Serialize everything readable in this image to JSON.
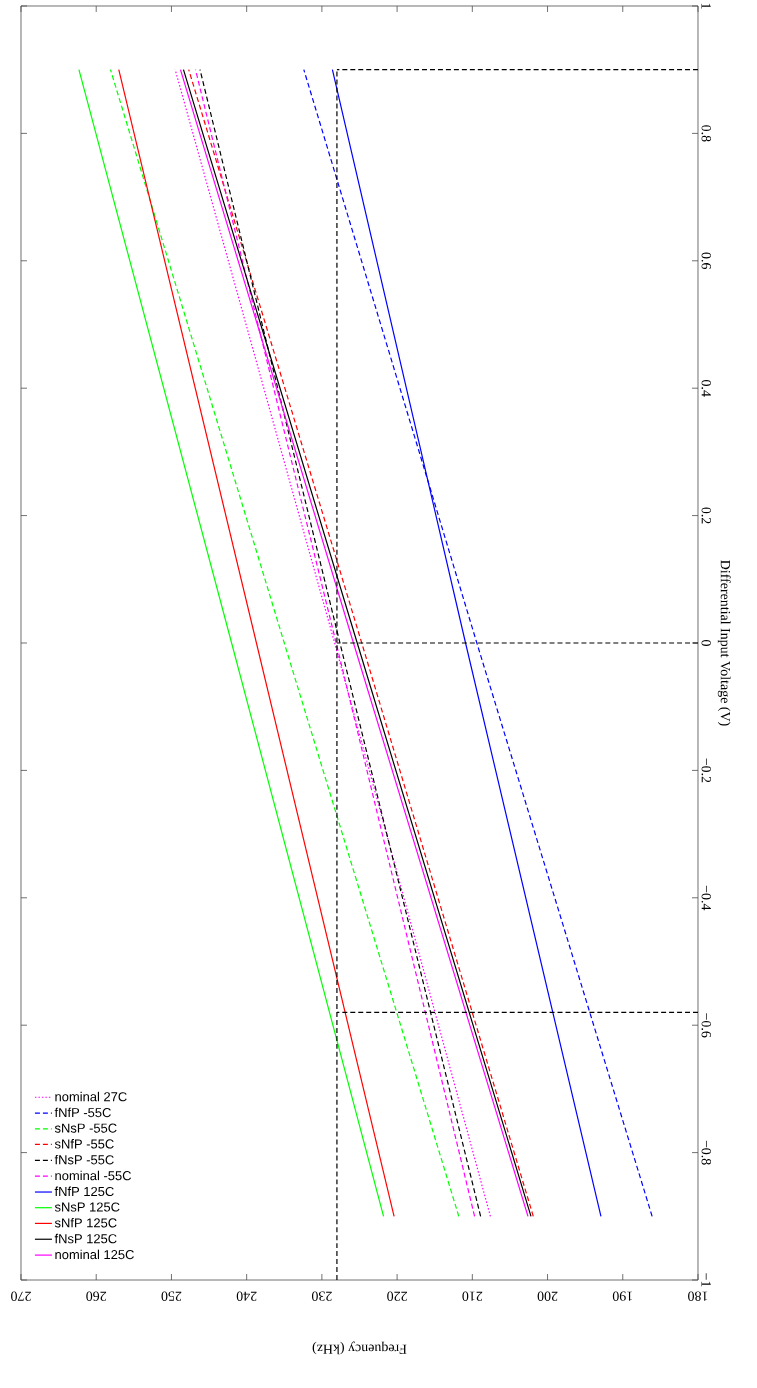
{
  "chart_data": {
    "type": "line",
    "xlabel": "Frequency (kHz)",
    "ylabel": "Differential Input Voltage (V)",
    "xlim": [
      270,
      180
    ],
    "ylim": [
      -1,
      1
    ],
    "xticks": [
      270,
      260,
      250,
      240,
      230,
      220,
      210,
      200,
      190,
      180
    ],
    "yticks": [
      {
        "value": -1,
        "label": "−1"
      },
      {
        "value": -0.8,
        "label": "−0.8"
      },
      {
        "value": -0.6,
        "label": "−0.6"
      },
      {
        "value": -0.4,
        "label": "−0.4"
      },
      {
        "value": -0.2,
        "label": "−0.2"
      },
      0,
      0.2,
      0.4,
      0.6,
      0.8,
      1
    ],
    "grid": false,
    "legend": "bottom left",
    "marker": "none",
    "series": [
      {
        "name": "nominal 27C",
        "color": "#ff00ff",
        "line_style": "dotted",
        "x": [
          207.6,
          228.3,
          249.5
        ],
        "values": [
          -0.9,
          0,
          0.9
        ]
      },
      {
        "name": "fNfP -55C",
        "color": "#0000ff",
        "line_style": "dashed",
        "x": [
          186.1,
          209.4,
          232.4
        ],
        "values": [
          -0.9,
          0,
          0.9
        ]
      },
      {
        "name": "sNsP -55C",
        "color": "#00ff00",
        "line_style": "dashed",
        "x": [
          211.8,
          235.0,
          258.1
        ],
        "values": [
          -0.9,
          0,
          0.9
        ]
      },
      {
        "name": "sNfP -55C",
        "color": "#ff0000",
        "line_style": "dashed",
        "x": [
          201.9,
          224.7,
          247.7
        ],
        "values": [
          -0.9,
          0,
          0.9
        ]
      },
      {
        "name": "fNsP -55C",
        "color": "#000000",
        "line_style": "dashed",
        "x": [
          208.9,
          227.6,
          246.2
        ],
        "values": [
          -0.9,
          0,
          0.9
        ]
      },
      {
        "name": "nominal -55C",
        "color": "#ff00ff",
        "line_style": "dashed",
        "x": [
          209.7,
          228.1,
          246.8
        ],
        "values": [
          -0.9,
          0,
          0.9
        ]
      },
      {
        "name": "fNfP 125C",
        "color": "#0000ff",
        "line_style": "solid",
        "x": [
          192.9,
          210.9,
          228.6
        ],
        "values": [
          -0.9,
          0,
          0.9
        ]
      },
      {
        "name": "sNsP 125C",
        "color": "#00ff00",
        "line_style": "solid",
        "x": [
          221.8,
          242.0,
          262.3
        ],
        "values": [
          -0.9,
          0,
          0.9
        ]
      },
      {
        "name": "sNfP 125C",
        "color": "#ff0000",
        "line_style": "solid",
        "x": [
          220.4,
          238.7,
          257.0
        ],
        "values": [
          -0.9,
          0,
          0.9
        ]
      },
      {
        "name": "fNsP 125C",
        "color": "#000000",
        "line_style": "solid",
        "x": [
          202.2,
          225.3,
          248.4
        ],
        "values": [
          -0.9,
          0,
          0.9
        ]
      },
      {
        "name": "nominal 125C",
        "color": "#ff00ff",
        "line_style": "solid",
        "x": [
          202.6,
          225.8,
          248.8
        ],
        "values": [
          -0.9,
          0,
          0.9
        ]
      },
      {
        "color": "#000000",
        "line_style": "dashed",
        "x": [
          228,
          228
        ],
        "values": [
          -1,
          0.9
        ]
      },
      {
        "color": "#000000",
        "line_style": "dashed",
        "x": [
          180,
          228
        ],
        "values": [
          0,
          0
        ]
      },
      {
        "color": "#000000",
        "line_style": "dashed",
        "x": [
          180,
          228
        ],
        "values": [
          -0.58,
          -0.58
        ]
      },
      {
        "color": "#000000",
        "line_style": "dashed",
        "x": [
          180,
          228
        ],
        "values": [
          0.9,
          0.9
        ]
      }
    ]
  }
}
